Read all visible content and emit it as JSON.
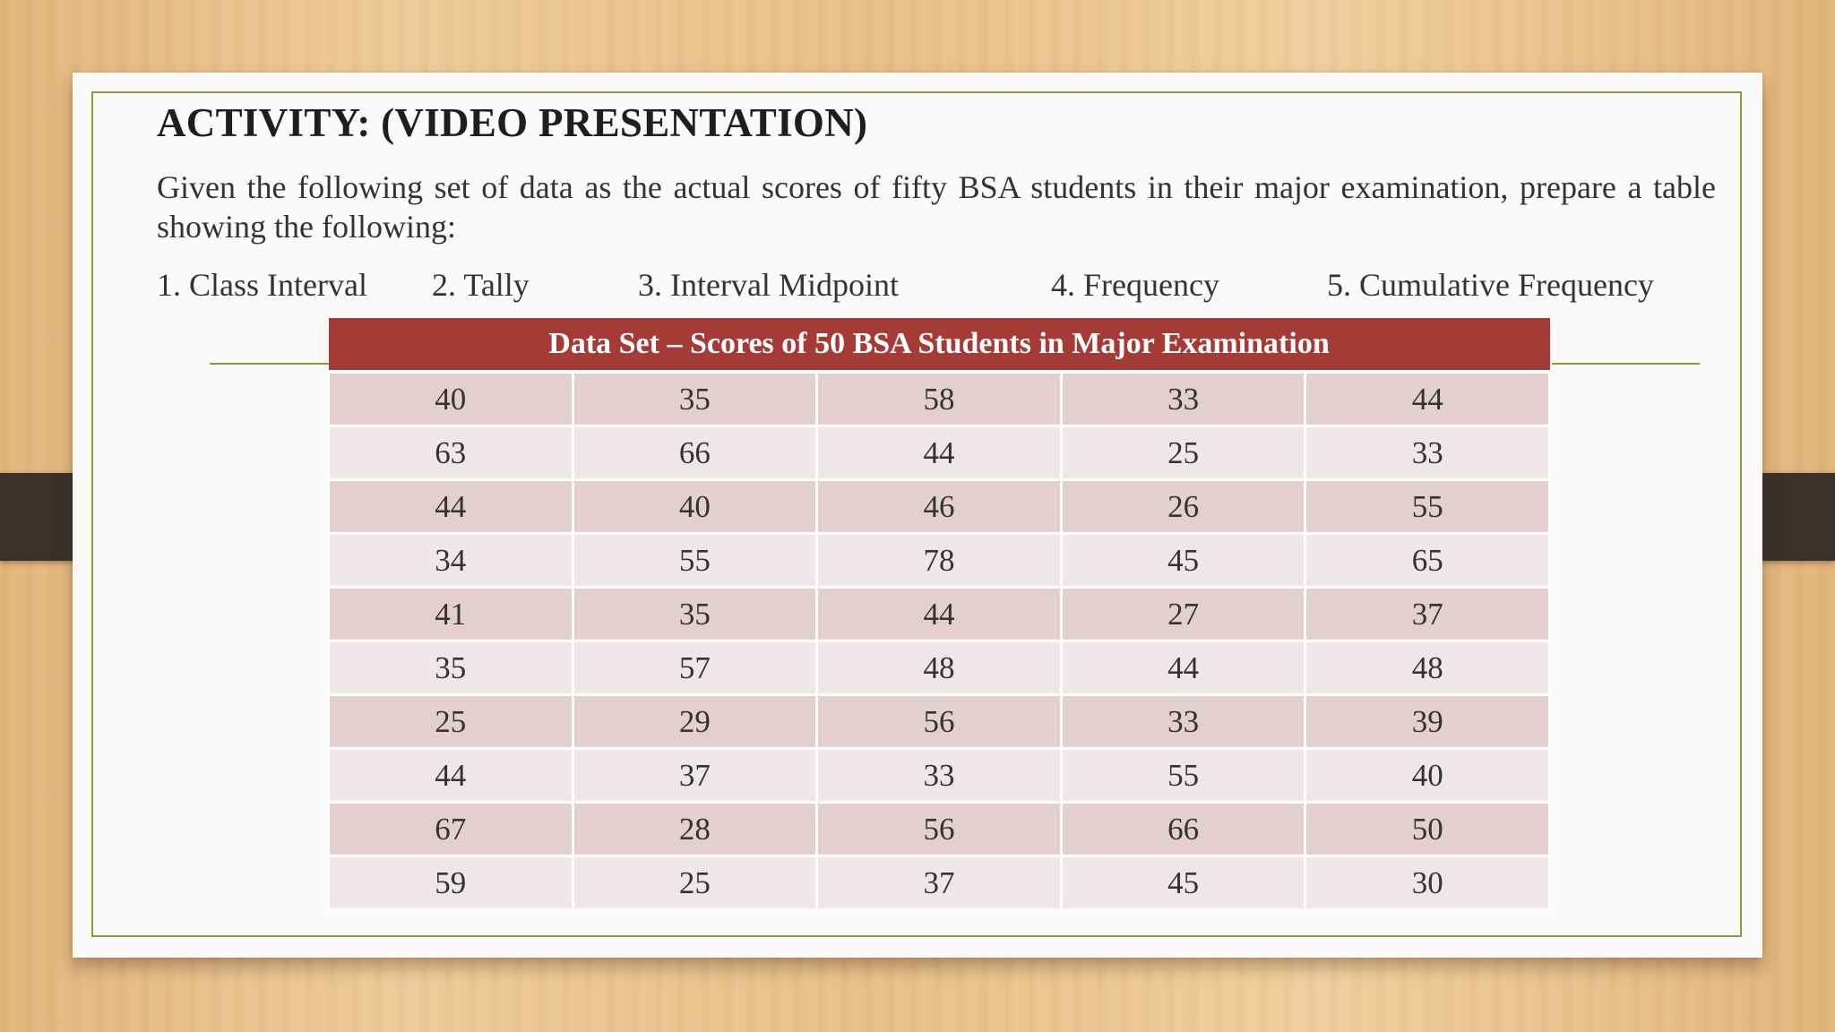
{
  "slide": {
    "title": "ACTIVITY: (VIDEO PRESENTATION)",
    "intro": "Given the following set of data as the actual scores of fifty BSA students in their major examination, prepare a table showing the following:",
    "steps": [
      "1. Class Interval",
      "2. Tally",
      "3. Interval Midpoint",
      "4. Frequency",
      "5. Cumulative Frequency"
    ]
  },
  "table": {
    "header": "Data Set – Scores of 50 BSA Students in Major Examination",
    "rows": [
      [
        "40",
        "35",
        "58",
        "33",
        "44"
      ],
      [
        "63",
        "66",
        "44",
        "25",
        "33"
      ],
      [
        "44",
        "40",
        "46",
        "26",
        "55"
      ],
      [
        "34",
        "55",
        "78",
        "45",
        "65"
      ],
      [
        "41",
        "35",
        "44",
        "27",
        "37"
      ],
      [
        "35",
        "57",
        "48",
        "44",
        "48"
      ],
      [
        "25",
        "29",
        "56",
        "33",
        "39"
      ],
      [
        "44",
        "37",
        "33",
        "55",
        "40"
      ],
      [
        "67",
        "28",
        "56",
        "66",
        "50"
      ],
      [
        "59",
        "25",
        "37",
        "45",
        "30"
      ]
    ]
  },
  "colors": {
    "header_bg": "#a43b36",
    "row_dark": "#e4cfd0",
    "row_light": "#efe6e7",
    "frame": "#8a9a3a"
  }
}
